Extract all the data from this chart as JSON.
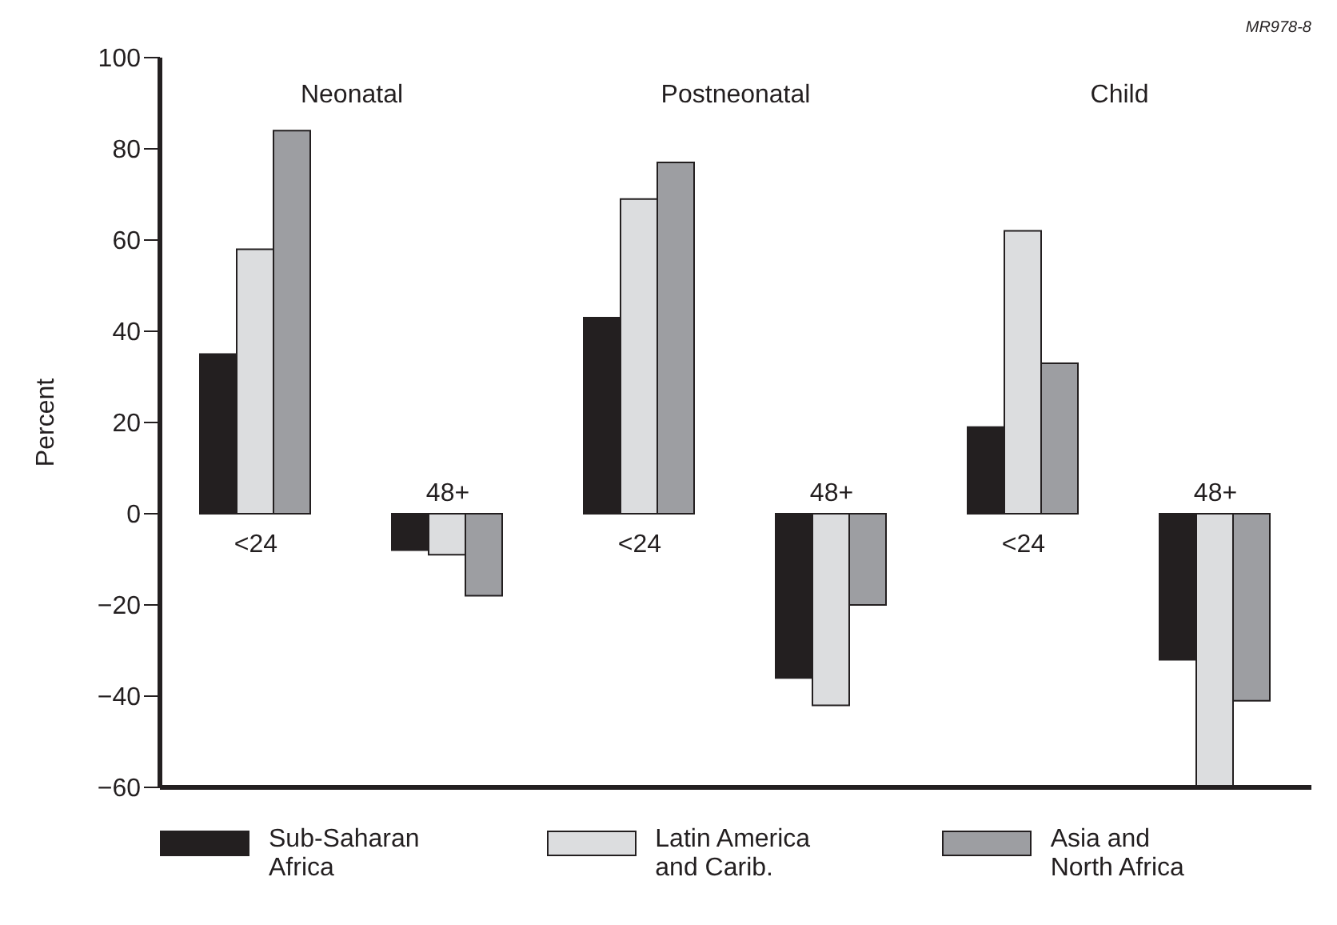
{
  "chart_data": {
    "type": "bar",
    "ylabel": "Percent",
    "categories": [
      "<24",
      "48+",
      "<24",
      "48+",
      "<24",
      "48+"
    ],
    "series": [
      {
        "name": "Sub-Saharan Africa",
        "color": "#231f20",
        "values": [
          35,
          -8,
          43,
          -36,
          19,
          -32
        ]
      },
      {
        "name": "Latin America and Carib.",
        "color": "#dcdddf",
        "values": [
          58,
          -9,
          69,
          -42,
          62,
          -60
        ]
      },
      {
        "name": "Asia and North Africa",
        "color": "#9d9ea2",
        "values": [
          84,
          -18,
          77,
          -20,
          33,
          -41
        ]
      }
    ],
    "ylim": [
      -60,
      100
    ],
    "yticks": [
      -60,
      -40,
      -20,
      0,
      20,
      40,
      60,
      80,
      100
    ],
    "annotations": [
      "Neonatal",
      "Postneonatal",
      "Child",
      "MR978-8"
    ],
    "grid": false,
    "legend": "bottom"
  }
}
